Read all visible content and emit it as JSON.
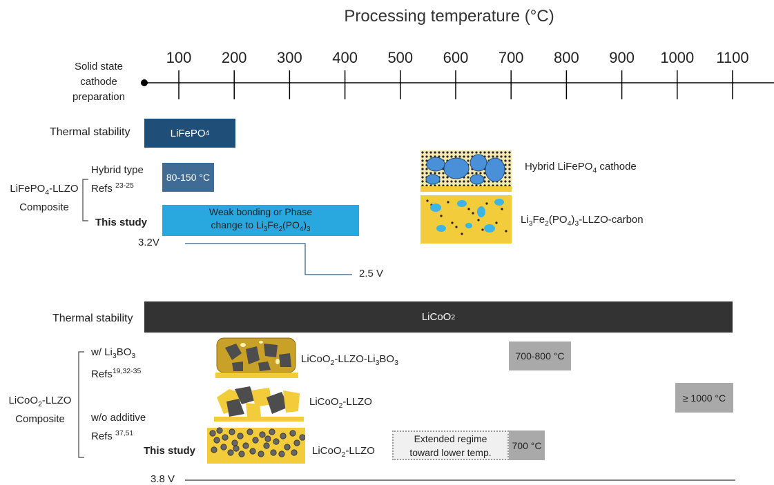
{
  "title": "Processing temperature (°C)",
  "axis": {
    "row_label_lines": [
      "Solid state",
      "cathode",
      "preparation"
    ],
    "ticks": [
      "100",
      "200",
      "300",
      "400",
      "500",
      "600",
      "700",
      "800",
      "900",
      "1000",
      "1100"
    ]
  },
  "lifepo4": {
    "thermal_stability_label": "Thermal stability",
    "thermal_stability_bar": "LiFePO",
    "thermal_stability_bar_sub": "4",
    "composite_label_line1": "LiFePO",
    "composite_label_sub": "4",
    "composite_label_rest": "-LLZO",
    "composite_label_line2": "Composite",
    "hybrid_type_label": "Hybrid type",
    "hybrid_refs_label": "Refs",
    "hybrid_refs_sup": "23-25",
    "hybrid_bar": "80-150 °C",
    "this_study_label": "This study",
    "this_study_bar_line1": "Weak bonding or Phase",
    "this_study_bar_line2": "change to Li",
    "this_study_bar_tail": "Fe",
    "this_study_bar_tail2": "(PO",
    "this_study_bar_tail3": ")",
    "voltage_high": "3.2V",
    "voltage_low": "2.5 V",
    "legend_hybrid_a": "Hybrid LiFePO",
    "legend_hybrid_sub": "4",
    "legend_hybrid_b": " cathode",
    "legend_li3fe2_a": "Li",
    "legend_li3fe2_b": "Fe",
    "legend_li3fe2_c": "(PO",
    "legend_li3fe2_d": ")",
    "legend_li3fe2_e": "-LLZO-carbon"
  },
  "licoo2": {
    "thermal_stability_label": "Thermal stability",
    "thermal_stability_bar": "LiCoO",
    "thermal_stability_bar_sub": "2",
    "composite_label_line1": "LiCoO",
    "composite_label_sub": "2",
    "composite_label_rest": "-LLZO",
    "composite_label_line2": "Composite",
    "with_label": "w/ Li",
    "with_label_sub1": "3",
    "with_label_bo": "BO",
    "with_label_sub2": "3",
    "with_refs": "Refs",
    "with_refs_sup": "19,32-35",
    "without_label": "w/o additive",
    "without_refs": "Refs ",
    "without_refs_sup": "37,51",
    "this_study_label": "This study",
    "img1_label_a": "LiCoO",
    "img1_label_sub": "2",
    "img1_label_b": "-LLZO-Li",
    "img1_label_sub2": "3",
    "img1_label_c": "BO",
    "img1_label_sub3": "3",
    "img2_label_a": "LiCoO",
    "img2_label_sub": "2",
    "img2_label_b": "-LLZO",
    "img3_label_a": "LiCoO",
    "img3_label_sub": "2",
    "img3_label_b": "-LLZO",
    "box_700_800": "700-800 °C",
    "box_1000": "≥ 1000 °C",
    "box_700": "700 °C",
    "extended_line1": "Extended regime",
    "extended_line2": "toward lower temp.",
    "voltage": "3.8 V"
  },
  "colors": {
    "lifepo4_thermal": "#1f4e79",
    "hybrid_bar": "#3f6b94",
    "this_study_bar": "#29a8e0",
    "licoo2_thermal": "#333333",
    "gray_box": "#a9a9a9",
    "llzo_yellow": "#f2cc3a",
    "blue_particle": "#4a90d9",
    "dark_particle": "#4d4d4d"
  }
}
